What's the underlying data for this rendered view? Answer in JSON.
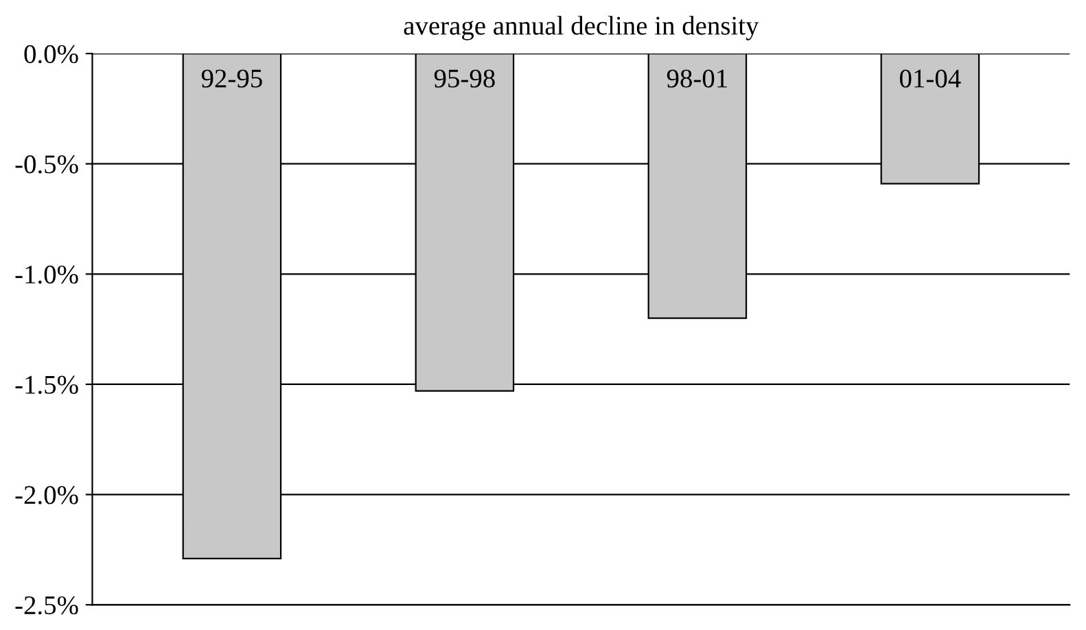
{
  "chart_data": {
    "type": "bar",
    "title": "average annual decline in density",
    "categories": [
      "92-95",
      "95-98",
      "98-01",
      "01-04"
    ],
    "values": [
      -2.29,
      -1.53,
      -1.2,
      -0.59
    ],
    "color": "#c8c8c8",
    "ylim": [
      -2.5,
      0.0
    ],
    "yticks": [
      {
        "value": 0.0,
        "label": "0.0%"
      },
      {
        "value": -0.5,
        "label": "-0.5%"
      },
      {
        "value": -1.0,
        "label": "-1.0%"
      },
      {
        "value": -1.5,
        "label": "-1.5%"
      },
      {
        "value": -2.0,
        "label": "-2.0%"
      },
      {
        "value": -2.5,
        "label": "-2.5%"
      }
    ],
    "grid": "y",
    "legend": false
  }
}
